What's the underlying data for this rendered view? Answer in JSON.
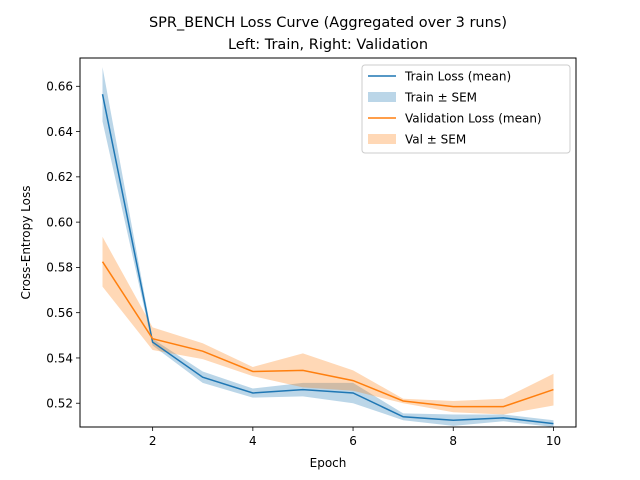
{
  "chart_data": {
    "type": "line",
    "title": "SPR_BENCH Loss Curve (Aggregated over 3 runs)",
    "subtitle": "Left: Train, Right: Validation",
    "xlabel": "Epoch",
    "ylabel": "Cross-Entropy Loss",
    "xlim": [
      0.55,
      10.45
    ],
    "ylim": [
      0.5095,
      0.6725
    ],
    "x_ticks": [
      2,
      4,
      6,
      8,
      10
    ],
    "y_ticks": [
      0.52,
      0.54,
      0.56,
      0.58,
      0.6,
      0.62,
      0.64,
      0.66
    ],
    "x": [
      1,
      2,
      3,
      4,
      5,
      6,
      7,
      8,
      9,
      10
    ],
    "grid": false,
    "legend_position": "top-right",
    "series": [
      {
        "name": "Train Loss (mean)",
        "band_name": "Train ± SEM",
        "color": "#1f77b4",
        "values": [
          0.6565,
          0.547,
          0.5315,
          0.5245,
          0.526,
          0.5245,
          0.514,
          0.5125,
          0.5135,
          0.511
        ],
        "sem": [
          0.012,
          0.0015,
          0.0025,
          0.002,
          0.003,
          0.0045,
          0.0015,
          0.0025,
          0.0015,
          0.0015
        ]
      },
      {
        "name": "Validation Loss (mean)",
        "band_name": "Val ± SEM",
        "color": "#ff7f0e",
        "values": [
          0.5825,
          0.5485,
          0.543,
          0.534,
          0.5345,
          0.53,
          0.521,
          0.5185,
          0.5185,
          0.526
        ],
        "sem": [
          0.011,
          0.005,
          0.0035,
          0.002,
          0.0075,
          0.0045,
          0.001,
          0.0025,
          0.0035,
          0.007
        ]
      }
    ]
  }
}
